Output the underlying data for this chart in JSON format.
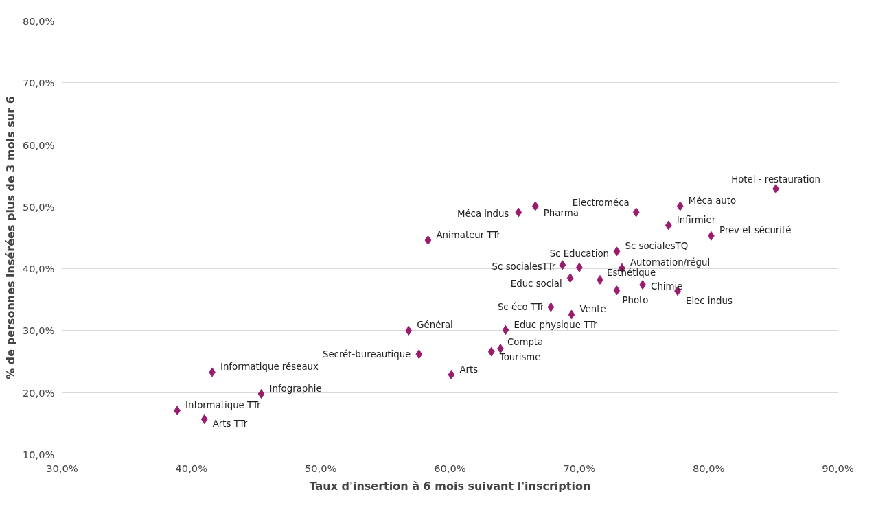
{
  "chart_data": {
    "type": "scatter",
    "xlabel": "Taux d'insertion à 6 mois suivant l'inscription",
    "ylabel": "% de personnes insérées plus de 3 mois sur 6",
    "x": [
      85.2,
      77.8,
      74.4,
      76.9,
      80.2,
      72.9,
      73.3,
      71.6,
      74.9,
      72.9,
      77.6,
      65.3,
      66.6,
      58.3,
      70.0,
      68.7,
      69.3,
      67.8,
      69.4,
      56.8,
      64.3,
      63.9,
      63.2,
      57.6,
      60.1,
      41.6,
      45.4,
      38.9,
      41.0
    ],
    "values": [
      52.9,
      50.1,
      49.1,
      47.0,
      45.3,
      42.8,
      40.1,
      38.2,
      37.4,
      36.5,
      36.4,
      49.1,
      50.1,
      44.6,
      40.2,
      40.6,
      38.5,
      33.8,
      32.6,
      30.0,
      30.1,
      27.1,
      26.6,
      26.2,
      22.9,
      23.3,
      19.8,
      17.1,
      15.7
    ],
    "value_labels": [
      "Hotel - restauration",
      "Méca auto",
      "Electroméca",
      "Infirmier",
      "Prev et sécurité",
      "Sc socialesTQ",
      "Automation/régul",
      "Esthétique",
      "Chimie",
      "Photo",
      "Elec indus",
      "Méca indus",
      "Pharma",
      "Animateur TTr",
      "Sc Education",
      "Sc socialesTTr",
      "Educ social",
      "Sc éco TTr",
      "Vente",
      "Général",
      "Educ physique TTr",
      "Compta",
      "Tourisme",
      "Secrét-bureautique",
      "Arts",
      "Informatique réseaux",
      "Infographie",
      "Informatique TTr",
      "Arts TTr"
    ],
    "color": "#9b1b6e",
    "marker": "diamond",
    "grid": "y",
    "xlim": [
      30,
      90
    ],
    "xticks": [
      {
        "value": 30,
        "label": "30,0%"
      },
      {
        "value": 40,
        "label": "40,0%"
      },
      {
        "value": 50,
        "label": "50,0%"
      },
      {
        "value": 60,
        "label": "60,0%"
      },
      {
        "value": 70,
        "label": "70,0%"
      },
      {
        "value": 80,
        "label": "80,0%"
      },
      {
        "value": 90,
        "label": "90,0%"
      }
    ],
    "ylim": [
      10,
      80
    ],
    "yticks": [
      {
        "value": 10,
        "label": "10,0%"
      },
      {
        "value": 20,
        "label": "20,0%"
      },
      {
        "value": 30,
        "label": "30,0%"
      },
      {
        "value": 40,
        "label": "40,0%"
      },
      {
        "value": 50,
        "label": "50,0%"
      },
      {
        "value": 60,
        "label": "60,0%"
      },
      {
        "value": 70,
        "label": "70,0%"
      },
      {
        "value": 80,
        "label": "80,0%"
      }
    ]
  }
}
